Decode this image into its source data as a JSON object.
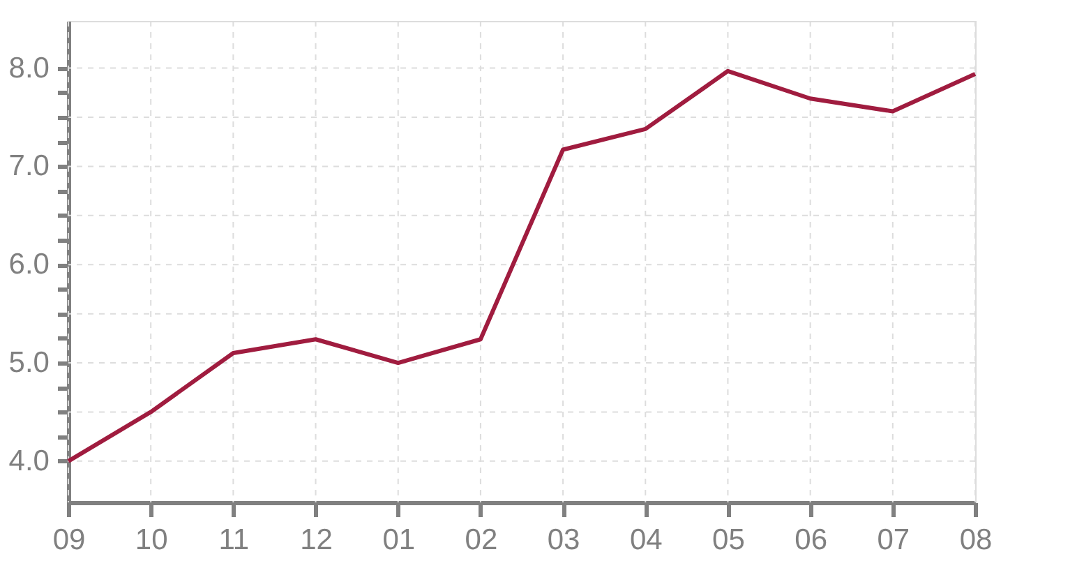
{
  "chart_data": {
    "type": "line",
    "categories": [
      "09",
      "10",
      "11",
      "12",
      "01",
      "02",
      "03",
      "04",
      "05",
      "06",
      "07",
      "08"
    ],
    "series": [
      {
        "color": "#a01c3f",
        "values": [
          4.0,
          4.5,
          5.1,
          5.24,
          5.0,
          5.24,
          7.17,
          7.38,
          7.97,
          7.69,
          7.56,
          7.94
        ]
      }
    ],
    "ylim": [
      3.58,
      8.48
    ],
    "yticks": [
      {
        "value": 4,
        "label": "4.0"
      },
      {
        "value": 4.25,
        "label": null
      },
      {
        "value": 4.5,
        "label": null
      },
      {
        "value": 4.75,
        "label": null
      },
      {
        "value": 5,
        "label": "5.0"
      },
      {
        "value": 5.25,
        "label": null
      },
      {
        "value": 5.5,
        "label": null
      },
      {
        "value": 5.75,
        "label": null
      },
      {
        "value": 6,
        "label": "6.0"
      },
      {
        "value": 6.25,
        "label": null
      },
      {
        "value": 6.5,
        "label": null
      },
      {
        "value": 6.75,
        "label": null
      },
      {
        "value": 7,
        "label": "7.0"
      },
      {
        "value": 7.25,
        "label": null
      },
      {
        "value": 7.5,
        "label": null
      },
      {
        "value": 7.75,
        "label": null
      },
      {
        "value": 8,
        "label": "8.0"
      }
    ],
    "grid": true,
    "marker": "none",
    "line_style": "solid"
  }
}
